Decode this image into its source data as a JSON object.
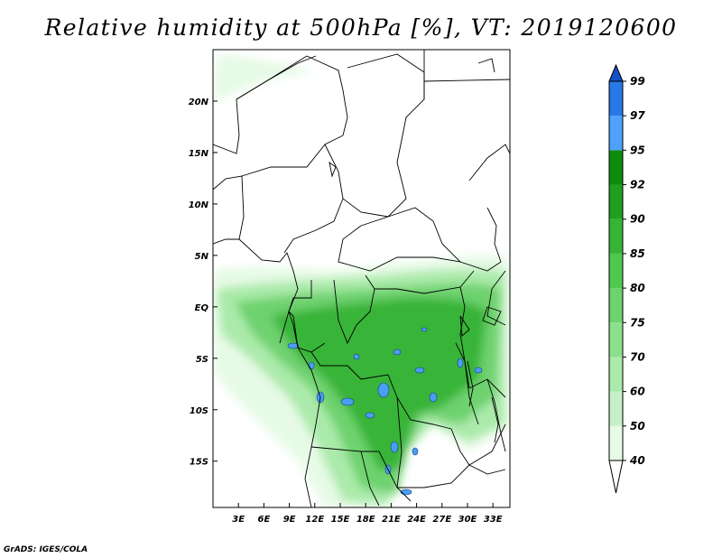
{
  "title": "Relative humidity at 500hPa [%], VT: 2019120600",
  "credit": "GrADS: IGES/COLA",
  "map": {
    "lat_labels": [
      {
        "text": "20N",
        "value": 20
      },
      {
        "text": "15N",
        "value": 15
      },
      {
        "text": "10N",
        "value": 10
      },
      {
        "text": "5N",
        "value": 5
      },
      {
        "text": "EQ",
        "value": 0
      },
      {
        "text": "5S",
        "value": -5
      },
      {
        "text": "10S",
        "value": -10
      },
      {
        "text": "15S",
        "value": -15
      }
    ],
    "lon_labels": [
      {
        "text": "3E",
        "value": 3
      },
      {
        "text": "6E",
        "value": 6
      },
      {
        "text": "9E",
        "value": 9
      },
      {
        "text": "12E",
        "value": 12
      },
      {
        "text": "15E",
        "value": 15
      },
      {
        "text": "18E",
        "value": 18
      },
      {
        "text": "21E",
        "value": 21
      },
      {
        "text": "24E",
        "value": 24
      },
      {
        "text": "27E",
        "value": 27
      },
      {
        "text": "30E",
        "value": 30
      },
      {
        "text": "33E",
        "value": 33
      }
    ],
    "lon_range": [
      0,
      35
    ],
    "lat_range": [
      -19.5,
      25
    ]
  },
  "colorbar": {
    "levels": [
      "40",
      "50",
      "60",
      "70",
      "75",
      "80",
      "85",
      "90",
      "92",
      "95",
      "97",
      "99"
    ],
    "colors": [
      "#ffffff",
      "#e6fae6",
      "#c8f0c8",
      "#aaeaaa",
      "#8ce08c",
      "#6ed26e",
      "#50c850",
      "#37b437",
      "#1ea01e",
      "#0f8c0f",
      "#50a0ff",
      "#2878e6",
      "#1450c8"
    ]
  }
}
